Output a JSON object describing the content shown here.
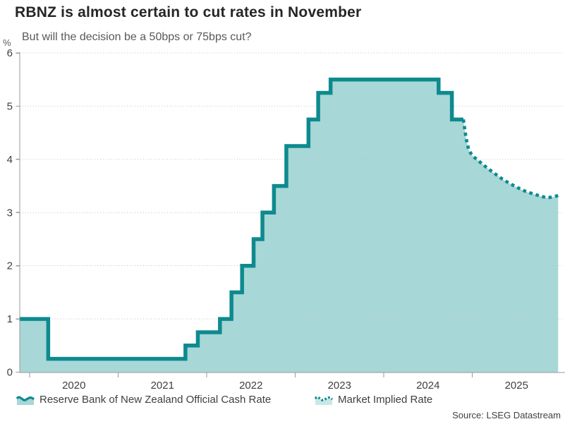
{
  "header": {
    "title": "RBNZ is almost certain to cut rates in November",
    "subtitle": "But will the decision be a 50bps or 75bps cut?"
  },
  "source": "Source: LSEG Datastream",
  "colors": {
    "line": "#0e8a8f",
    "fill": "#a7d7d6",
    "axis": "#9a9a9a",
    "grid": "#c4c4c4",
    "title": "#262626",
    "subtitle": "#595959",
    "ticktext": "#404040",
    "source": "#404040"
  },
  "chart_data": {
    "type": "area",
    "title": "RBNZ is almost certain to cut rates in November",
    "subtitle": "But will the decision be a 50bps or 75bps cut?",
    "ylabel": "%",
    "xlabel": "",
    "ylim": [
      0,
      6
    ],
    "yticks": [
      0,
      1,
      2,
      3,
      4,
      5,
      6
    ],
    "xtick_years": [
      2020,
      2021,
      2022,
      2023,
      2024,
      2025
    ],
    "x_domain": [
      2019.89,
      2026.0
    ],
    "grid": "dotted-horizontal",
    "legend_position": "bottom",
    "series": [
      {
        "name": "Reserve Bank of New Zealand Official Cash Rate",
        "style": "step-solid-area",
        "steps": [
          {
            "x": 2019.89,
            "rate": 1.0
          },
          {
            "x": 2020.21,
            "rate": 0.25
          },
          {
            "x": 2021.76,
            "rate": 0.5
          },
          {
            "x": 2021.9,
            "rate": 0.75
          },
          {
            "x": 2022.15,
            "rate": 1.0
          },
          {
            "x": 2022.28,
            "rate": 1.5
          },
          {
            "x": 2022.4,
            "rate": 2.0
          },
          {
            "x": 2022.53,
            "rate": 2.5
          },
          {
            "x": 2022.63,
            "rate": 3.0
          },
          {
            "x": 2022.76,
            "rate": 3.5
          },
          {
            "x": 2022.9,
            "rate": 4.25
          },
          {
            "x": 2023.15,
            "rate": 4.75
          },
          {
            "x": 2023.26,
            "rate": 5.25
          },
          {
            "x": 2023.4,
            "rate": 5.5
          },
          {
            "x": 2024.62,
            "rate": 5.25
          },
          {
            "x": 2024.77,
            "rate": 4.75
          }
        ],
        "end_x": 2024.9
      },
      {
        "name": "Market Implied Rate",
        "style": "dotted-line-area",
        "points": [
          [
            2024.9,
            4.75
          ],
          [
            2024.93,
            4.4
          ],
          [
            2024.96,
            4.18
          ],
          [
            2025.0,
            4.07
          ],
          [
            2025.08,
            3.96
          ],
          [
            2025.16,
            3.85
          ],
          [
            2025.24,
            3.75
          ],
          [
            2025.34,
            3.63
          ],
          [
            2025.42,
            3.55
          ],
          [
            2025.51,
            3.47
          ],
          [
            2025.6,
            3.4
          ],
          [
            2025.69,
            3.35
          ],
          [
            2025.77,
            3.31
          ],
          [
            2025.84,
            3.28
          ],
          [
            2025.91,
            3.29
          ],
          [
            2025.97,
            3.32
          ]
        ]
      }
    ]
  }
}
